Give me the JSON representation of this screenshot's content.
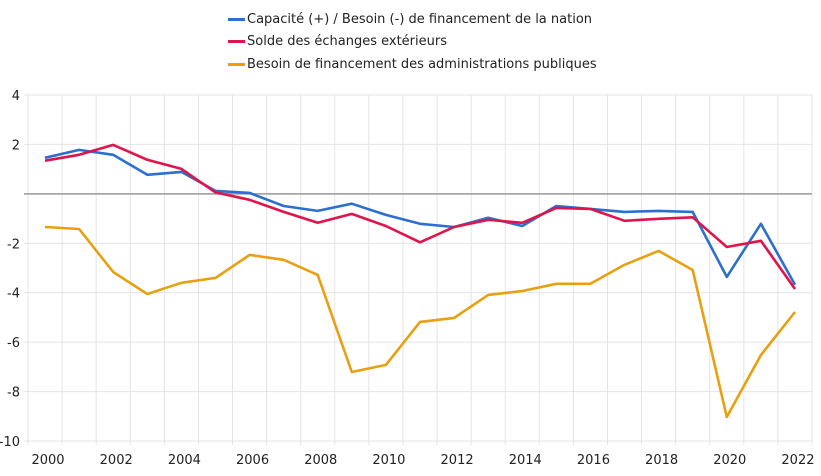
{
  "chart_data": {
    "type": "line",
    "title": "",
    "xlabel": "",
    "ylabel": "",
    "ylim": [
      -10,
      4
    ],
    "y_ticks": [
      4,
      2,
      -2,
      -4,
      -6,
      -8,
      -10
    ],
    "y_tick_labels": [
      "4",
      "2",
      "-2",
      "-4",
      "-6",
      "-8",
      "-10"
    ],
    "x": [
      "2000",
      "2001",
      "2002",
      "2003",
      "2004",
      "2005",
      "2006",
      "2007",
      "2008",
      "2009",
      "2010",
      "2011",
      "2012",
      "2013",
      "2014",
      "2015",
      "2016",
      "2017",
      "2018",
      "2019",
      "2020",
      "2021",
      "2022"
    ],
    "x_tick_labels": [
      "2000",
      "2002",
      "2004",
      "2006",
      "2008",
      "2010",
      "2012",
      "2014",
      "2016",
      "2018",
      "2020",
      "2022"
    ],
    "grid": true,
    "legend_position": "top-center",
    "series": [
      {
        "name": "Capacité (+) / Besoin (-) de financement de la nation",
        "color": "#2d6fcf",
        "values": [
          1.46,
          1.78,
          1.58,
          0.77,
          0.89,
          0.12,
          0.04,
          -0.49,
          -0.69,
          -0.4,
          -0.85,
          -1.21,
          -1.34,
          -0.97,
          -1.3,
          -0.49,
          -0.61,
          -0.73,
          -0.69,
          -0.73,
          -3.36,
          -1.21,
          -3.68
        ]
      },
      {
        "name": "Solde des échanges extérieurs",
        "color": "#e0144c",
        "values": [
          1.34,
          1.58,
          1.98,
          1.38,
          1.01,
          0.06,
          -0.24,
          -0.73,
          -1.17,
          -0.81,
          -1.3,
          -1.96,
          -1.34,
          -1.05,
          -1.17,
          -0.57,
          -0.61,
          -1.09,
          -1.01,
          -0.95,
          -2.15,
          -1.9,
          -3.85
        ]
      },
      {
        "name": "Besoin de financement des administrations publiques",
        "color": "#e8a011",
        "values": [
          -1.34,
          -1.42,
          -3.16,
          -4.05,
          -3.6,
          -3.4,
          -2.47,
          -2.67,
          -3.28,
          -7.21,
          -6.92,
          -5.18,
          -5.02,
          -4.09,
          -3.93,
          -3.64,
          -3.64,
          -2.87,
          -2.31,
          -3.08,
          -9.03,
          -6.52,
          -4.78
        ]
      }
    ]
  }
}
